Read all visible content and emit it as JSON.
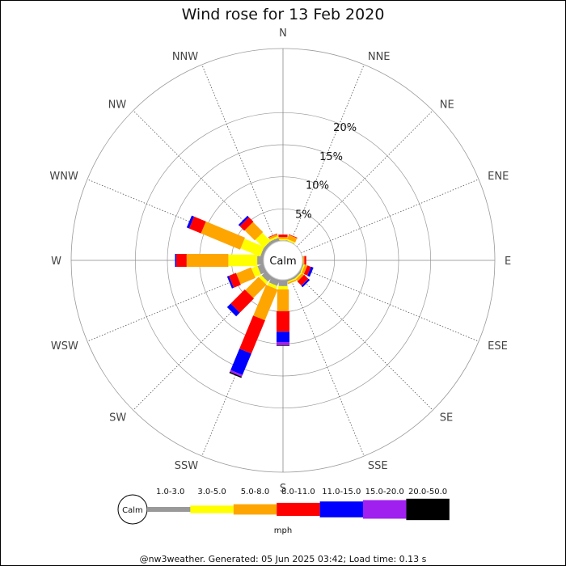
{
  "chart_data": {
    "type": "windrose",
    "title": "Wind rose for 13 Feb 2020",
    "directions": [
      "N",
      "NNE",
      "NE",
      "ENE",
      "E",
      "ESE",
      "SE",
      "SSE",
      "S",
      "SSW",
      "SW",
      "WSW",
      "W",
      "WNW",
      "NW",
      "NNW"
    ],
    "radial_ticks": [
      "5%",
      "10%",
      "15%",
      "20%"
    ],
    "radial_tick_values": [
      5,
      10,
      15,
      20
    ],
    "radial_max": 30,
    "calm_label": "Calm",
    "unit_label": "mph",
    "speed_bins": [
      {
        "label": "1.0-3.0",
        "color": "#999999"
      },
      {
        "label": "3.0-5.0",
        "color": "#ffff00"
      },
      {
        "label": "5.0-8.0",
        "color": "#ffa500"
      },
      {
        "label": "8.0-11.0",
        "color": "#ff0000"
      },
      {
        "label": "11.0-15.0",
        "color": "#0000ff"
      },
      {
        "label": "15.0-20.0",
        "color": "#a020f0"
      },
      {
        "label": "20.0-50.0",
        "color": "#000000"
      }
    ],
    "values_percent": {
      "N": [
        0.1,
        0.2,
        0.3,
        0.4,
        0.0,
        0.0,
        0.0
      ],
      "NNE": [
        0.1,
        0.2,
        0.7,
        0.1,
        0.0,
        0.0,
        0.0
      ],
      "NE": [
        0.0,
        0.0,
        0.0,
        0.0,
        0.0,
        0.0,
        0.0
      ],
      "ENE": [
        0.0,
        0.0,
        0.0,
        0.0,
        0.0,
        0.0,
        0.0
      ],
      "E": [
        0.1,
        0.0,
        0.2,
        0.3,
        0.0,
        0.0,
        0.0
      ],
      "ESE": [
        0.2,
        0.2,
        0.4,
        0.6,
        0.4,
        0.0,
        0.0
      ],
      "SE": [
        0.3,
        0.2,
        0.4,
        0.9,
        0.3,
        0.0,
        0.0
      ],
      "SSE": [
        0.3,
        0.2,
        0.2,
        0.0,
        0.0,
        0.0,
        0.0
      ],
      "S": [
        1.0,
        0.5,
        3.4,
        3.2,
        1.6,
        0.5,
        0.1
      ],
      "SSW": [
        1.0,
        0.5,
        5.2,
        5.6,
        3.6,
        0.3,
        0.2
      ],
      "SW": [
        1.0,
        0.5,
        2.9,
        3.1,
        0.8,
        0.0,
        0.0
      ],
      "WSW": [
        1.0,
        1.0,
        2.5,
        1.2,
        0.3,
        0.0,
        0.0
      ],
      "W": [
        1.0,
        4.5,
        6.5,
        1.6,
        0.2,
        0.0,
        0.0
      ],
      "WNW": [
        0.5,
        3.3,
        6.6,
        2.0,
        0.4,
        0.0,
        0.0
      ],
      "NW": [
        0.5,
        1.8,
        2.2,
        1.0,
        0.3,
        0.0,
        0.0
      ],
      "NNW": [
        0.5,
        0.3,
        0.3,
        0.1,
        0.0,
        0.0,
        0.0
      ]
    }
  },
  "footer": "@nw3weather. Generated: 05 Jun 2025 03:42; Load time: 0.13 s"
}
